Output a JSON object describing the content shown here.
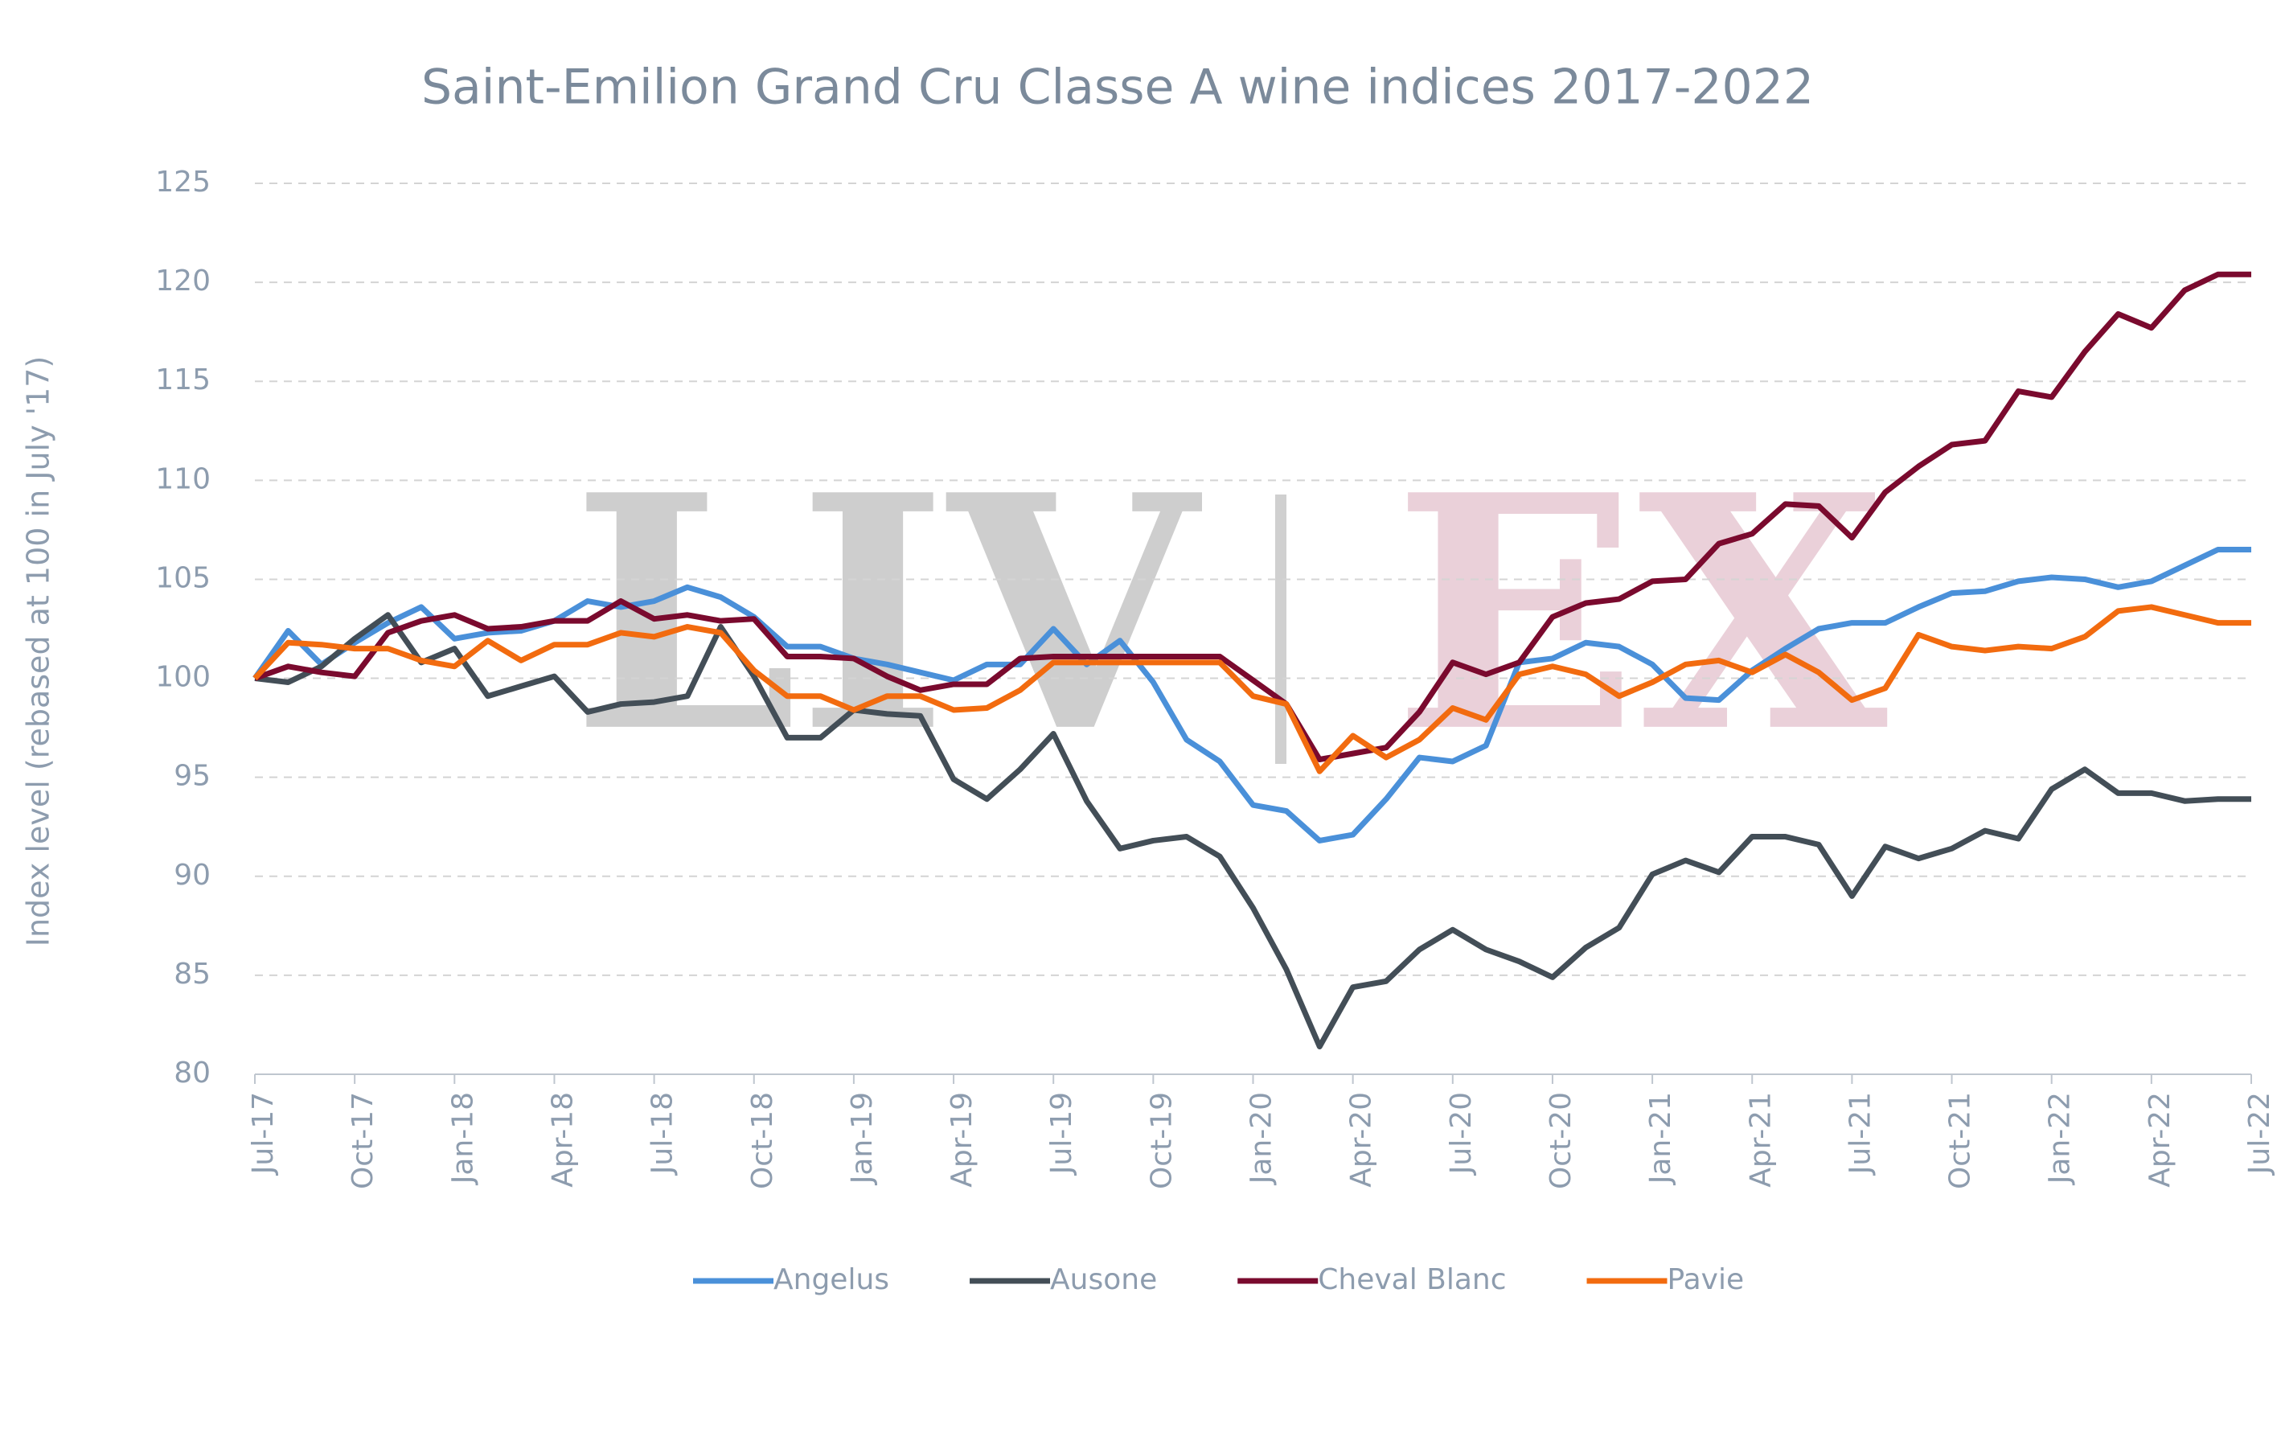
{
  "chart_data": {
    "type": "line",
    "title": "Saint-Emilion Grand Cru Classe A wine indices 2017-2022",
    "y_label": "Index level (rebased at 100 in July '17)",
    "watermark": {
      "left": "LIV",
      "right": "EX"
    },
    "categories": [
      "Jul-17",
      null,
      null,
      "Oct-17",
      null,
      null,
      "Jan-18",
      null,
      null,
      "Apr-18",
      null,
      null,
      "Jul-18",
      null,
      null,
      "Oct-18",
      null,
      null,
      "Jan-19",
      null,
      null,
      "Apr-19",
      null,
      null,
      "Jul-19",
      null,
      null,
      "Oct-19",
      null,
      null,
      "Jan-20",
      null,
      null,
      "Apr-20",
      null,
      null,
      "Jul-20",
      null,
      null,
      "Oct-20",
      null,
      null,
      "Jan-21",
      null,
      null,
      "Apr-21",
      null,
      null,
      "Jul-21",
      null,
      null,
      "Oct-21",
      null,
      null,
      "Jan-22",
      null,
      null,
      "Apr-22",
      null,
      null,
      "Jul-22"
    ],
    "series": [
      {
        "name": "Angelus",
        "color": "#4a90d9",
        "values": [
          100,
          102.4,
          100.7,
          101.8,
          102.8,
          103.6,
          102.0,
          102.3,
          102.4,
          102.9,
          103.9,
          103.6,
          103.9,
          104.6,
          104.1,
          103.1,
          101.6,
          101.6,
          101.0,
          100.7,
          100.3,
          99.9,
          100.7,
          100.7,
          102.5,
          100.7,
          101.9,
          99.8,
          96.9,
          95.8,
          93.6,
          93.3,
          91.8,
          92.1,
          93.9,
          96.0,
          95.8,
          96.6,
          100.8,
          101.0,
          101.8,
          101.6,
          100.7,
          99.0,
          98.9,
          100.4,
          101.5,
          102.5,
          102.8,
          102.8,
          103.6,
          104.3,
          104.4,
          104.9,
          105.1,
          105.0,
          104.6,
          104.9,
          105.7,
          106.5,
          106.5
        ]
      },
      {
        "name": "Ausone",
        "color": "#434e57",
        "values": [
          100,
          99.8,
          100.6,
          102.0,
          103.2,
          100.8,
          101.5,
          99.1,
          99.6,
          100.1,
          98.3,
          98.7,
          98.8,
          99.1,
          102.6,
          100.1,
          97.0,
          97.0,
          98.4,
          98.2,
          98.1,
          94.9,
          93.9,
          95.4,
          97.2,
          93.8,
          91.4,
          91.8,
          92.0,
          91.0,
          88.4,
          85.3,
          81.4,
          84.4,
          84.7,
          86.3,
          87.3,
          86.3,
          85.7,
          84.9,
          86.4,
          87.4,
          90.1,
          90.8,
          90.2,
          92.0,
          92.0,
          91.6,
          89.0,
          91.5,
          90.9,
          91.4,
          92.3,
          91.9,
          94.4,
          95.4,
          94.2,
          94.2,
          93.8,
          93.9,
          93.9
        ]
      },
      {
        "name": "Cheval Blanc",
        "color": "#7a0a2e",
        "values": [
          100,
          100.6,
          100.3,
          100.1,
          102.3,
          102.9,
          103.2,
          102.5,
          102.6,
          102.9,
          102.9,
          103.9,
          103.0,
          103.2,
          102.9,
          103.0,
          101.1,
          101.1,
          101.0,
          100.1,
          99.4,
          99.7,
          99.7,
          101.0,
          101.1,
          101.1,
          101.1,
          101.1,
          101.1,
          101.1,
          99.9,
          98.7,
          95.9,
          96.2,
          96.5,
          98.3,
          100.8,
          100.2,
          100.8,
          103.1,
          103.8,
          104.0,
          104.9,
          105.0,
          106.8,
          107.3,
          108.8,
          108.7,
          107.1,
          109.4,
          110.7,
          111.8,
          112.0,
          114.5,
          114.2,
          116.5,
          118.4,
          117.7,
          119.6,
          120.4,
          120.4
        ]
      },
      {
        "name": "Pavie",
        "color": "#f26b0f",
        "values": [
          100,
          101.8,
          101.7,
          101.5,
          101.5,
          100.9,
          100.6,
          101.9,
          100.9,
          101.7,
          101.7,
          102.3,
          102.1,
          102.6,
          102.3,
          100.4,
          99.1,
          99.1,
          98.4,
          99.1,
          99.1,
          98.4,
          98.5,
          99.4,
          100.8,
          100.8,
          100.8,
          100.8,
          100.8,
          100.8,
          99.1,
          98.7,
          95.3,
          97.1,
          96.0,
          96.9,
          98.5,
          97.9,
          100.2,
          100.6,
          100.2,
          99.1,
          99.8,
          100.7,
          100.9,
          100.3,
          101.2,
          100.3,
          98.9,
          99.5,
          102.2,
          101.6,
          101.4,
          101.6,
          101.5,
          102.1,
          103.4,
          103.6,
          103.2,
          102.8,
          102.8
        ]
      }
    ],
    "ylim": [
      80,
      125
    ],
    "yticks": [
      80,
      85,
      90,
      95,
      100,
      105,
      110,
      115,
      120,
      125
    ],
    "grid": true,
    "legend": "bottom"
  }
}
